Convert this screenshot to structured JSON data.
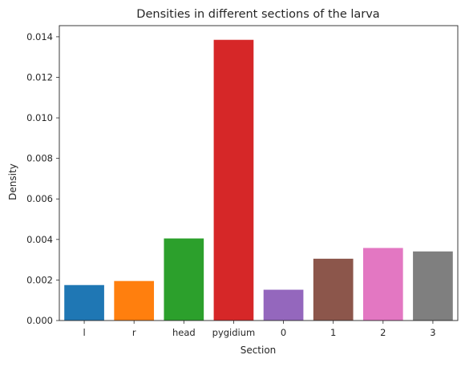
{
  "chart_data": {
    "type": "bar",
    "title": "Densities in different sections of the larva",
    "xlabel": "Section",
    "ylabel": "Density",
    "categories": [
      "l",
      "r",
      "head",
      "pygidium",
      "0",
      "1",
      "2",
      "3"
    ],
    "values": [
      0.00175,
      0.00195,
      0.00405,
      0.01385,
      0.00152,
      0.00305,
      0.00358,
      0.00341
    ],
    "colors": [
      "#1f77b4",
      "#ff7f0e",
      "#2ca02c",
      "#d62728",
      "#9467bd",
      "#8c564b",
      "#e377c2",
      "#7f7f7f"
    ],
    "ylim": [
      0,
      0.01455
    ],
    "yticks": [
      0.0,
      0.002,
      0.004,
      0.006,
      0.008,
      0.01,
      0.012,
      0.014
    ],
    "ytick_labels": [
      "0.000",
      "0.002",
      "0.004",
      "0.006",
      "0.008",
      "0.010",
      "0.012",
      "0.014"
    ],
    "grid": false,
    "legend": "none"
  }
}
